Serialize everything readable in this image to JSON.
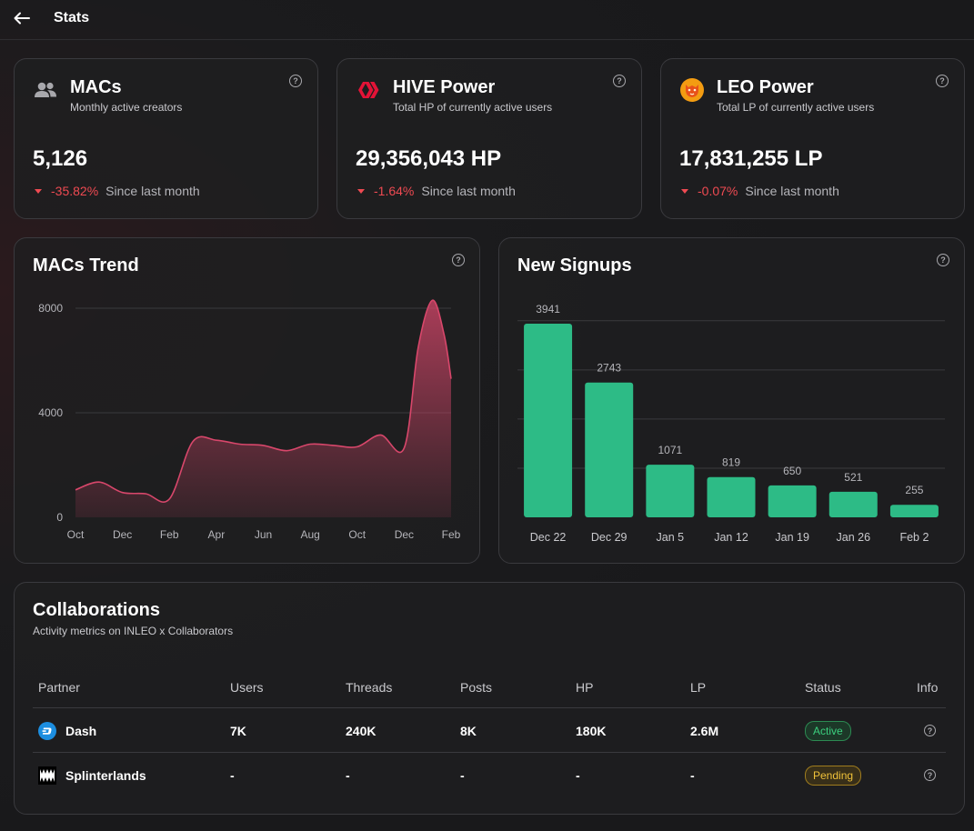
{
  "header": {
    "title": "Stats"
  },
  "stats": [
    {
      "title": "MACs",
      "subtitle": "Monthly active creators",
      "value": "5,126",
      "change": "-35.82%",
      "since": "Since last month",
      "icon": "users-icon"
    },
    {
      "title": "HIVE Power",
      "subtitle": "Total HP of currently active users",
      "value": "29,356,043 HP",
      "change": "-1.64%",
      "since": "Since last month",
      "icon": "hive-logo-icon"
    },
    {
      "title": "LEO Power",
      "subtitle": "Total LP of currently active users",
      "value": "17,831,255 LP",
      "change": "-0.07%",
      "since": "Since last month",
      "icon": "leo-logo-icon"
    }
  ],
  "colors": {
    "accent_green": "#2dbb86",
    "trend_line": "#d8476b",
    "negative": "#ef4a52"
  },
  "help_label": "?",
  "trend": {
    "title": "MACs Trend",
    "chart_data": {
      "type": "area",
      "ylim": [
        0,
        8000
      ],
      "yticks": [
        0,
        4000,
        8000
      ],
      "xticks": [
        "Oct",
        "Dec",
        "Feb",
        "Apr",
        "Jun",
        "Aug",
        "Oct",
        "Dec",
        "Feb"
      ],
      "x": [
        0,
        0.5,
        1,
        1.5,
        2,
        2.5,
        3,
        3.5,
        4,
        4.5,
        5,
        5.5,
        6,
        6.5,
        7,
        7.3,
        7.6,
        7.85,
        8
      ],
      "values": [
        1050,
        1350,
        950,
        900,
        700,
        2900,
        2950,
        2800,
        2750,
        2550,
        2800,
        2750,
        2700,
        3150,
        2650,
        6500,
        8300,
        7000,
        5300
      ]
    }
  },
  "signups": {
    "title": "New Signups",
    "chart_data": {
      "type": "bar",
      "categories": [
        "Dec 22",
        "Dec 29",
        "Jan 5",
        "Jan 12",
        "Jan 19",
        "Jan 26",
        "Feb 2"
      ],
      "values": [
        3941,
        2743,
        1071,
        819,
        650,
        521,
        255
      ],
      "ylim": [
        0,
        4200
      ]
    }
  },
  "collab": {
    "title": "Collaborations",
    "subtitle": "Activity metrics on INLEO x Collaborators",
    "columns": [
      "Partner",
      "Users",
      "Threads",
      "Posts",
      "HP",
      "LP",
      "Status",
      "Info"
    ],
    "rows": [
      {
        "partner": "Dash",
        "users": "7K",
        "threads": "240K",
        "posts": "8K",
        "hp": "180K",
        "lp": "2.6M",
        "status": "Active",
        "icon": "dash-logo-icon"
      },
      {
        "partner": "Splinterlands",
        "users": "-",
        "threads": "-",
        "posts": "-",
        "hp": "-",
        "lp": "-",
        "status": "Pending",
        "icon": "splinterlands-logo-icon"
      }
    ]
  }
}
